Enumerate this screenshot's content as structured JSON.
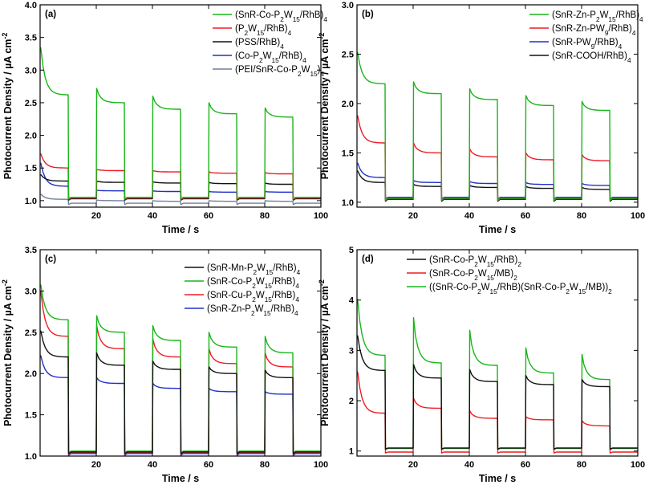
{
  "figure_colors": {
    "green": "#19b519",
    "red": "#ee1c24",
    "black": "#111111",
    "blue": "#2130c8",
    "slate": "#6f7f9e"
  },
  "chart_data": [
    {
      "panel": "(a)",
      "type": "line",
      "xlabel": "Time / s",
      "ylabel": "Photocurrent Density / µA cm⁻²",
      "xlim": [
        0,
        100
      ],
      "ylim": [
        0.9,
        4.0
      ],
      "xticks": [
        20,
        40,
        60,
        80,
        100
      ],
      "yticks": [
        1.0,
        1.5,
        2.0,
        2.5,
        3.0,
        3.5,
        4.0
      ],
      "legend_position": "top-right",
      "light_on_intervals": [
        [
          0,
          10
        ],
        [
          20,
          30
        ],
        [
          40,
          50
        ],
        [
          60,
          70
        ],
        [
          80,
          90
        ]
      ],
      "series": [
        {
          "name": "(SnR-Co-P2W15/RhB)4",
          "label": "(SnR-Co-P₂W₁₅/RhB)₄",
          "color": "green",
          "dark": 1.05,
          "peak": [
            3.35,
            2.72,
            2.6,
            2.5,
            2.42
          ],
          "plateau": [
            2.62,
            2.5,
            2.4,
            2.33,
            2.28
          ]
        },
        {
          "name": "(P2W15/RhB)4",
          "label": "(P₂W₁₅/RhB)₄",
          "color": "red",
          "dark": 1.04,
          "peak": [
            1.72,
            1.48,
            1.46,
            1.44,
            1.43
          ],
          "plateau": [
            1.5,
            1.46,
            1.44,
            1.42,
            1.41
          ]
        },
        {
          "name": "(PSS/RhB)4",
          "label": "(PSS/RhB)₄",
          "color": "black",
          "dark": 1.03,
          "peak": [
            1.4,
            1.3,
            1.29,
            1.28,
            1.27
          ],
          "plateau": [
            1.3,
            1.28,
            1.27,
            1.26,
            1.25
          ]
        },
        {
          "name": "(Co-P2W15/RhB)4",
          "label": "(Co-P₂W₁₅/RhB)₄",
          "color": "blue",
          "dark": 1.03,
          "peak": [
            1.58,
            1.16,
            1.15,
            1.14,
            1.14
          ],
          "plateau": [
            1.22,
            1.15,
            1.14,
            1.13,
            1.13
          ]
        },
        {
          "name": "(PEI/SnR-Co-P2W15)4",
          "label": "(PEI/SnR-Co-P₂W₁₅)₄",
          "color": "slate",
          "dark": 0.96,
          "peak": [
            1.1,
            1.01,
            1.0,
            1.0,
            1.0
          ],
          "plateau": [
            1.02,
            1.0,
            0.99,
            0.99,
            0.99
          ]
        }
      ]
    },
    {
      "panel": "(b)",
      "type": "line",
      "xlabel": "Time / s",
      "ylabel": "Photocurrent Density / µA cm⁻²",
      "xlim": [
        0,
        100
      ],
      "ylim": [
        0.95,
        3.0
      ],
      "xticks": [
        20,
        40,
        60,
        80,
        100
      ],
      "yticks": [
        1.0,
        1.5,
        2.0,
        2.5,
        3.0
      ],
      "legend_position": "top-right",
      "light_on_intervals": [
        [
          0,
          10
        ],
        [
          20,
          30
        ],
        [
          40,
          50
        ],
        [
          60,
          70
        ],
        [
          80,
          90
        ]
      ],
      "series": [
        {
          "name": "(SnR-Zn-P2W15/RhB)4",
          "label": "(SnR-Zn-P₂W₁₅/RhB)₄",
          "color": "green",
          "dark": 1.04,
          "peak": [
            2.52,
            2.22,
            2.15,
            2.08,
            2.02
          ],
          "plateau": [
            2.2,
            2.1,
            2.04,
            1.98,
            1.93
          ]
        },
        {
          "name": "(SnR-Zn-PW9/RhB)4",
          "label": "(SnR-Zn-PW₉/RhB)₄",
          "color": "red",
          "dark": 1.04,
          "peak": [
            1.88,
            1.6,
            1.54,
            1.5,
            1.48
          ],
          "plateau": [
            1.6,
            1.5,
            1.46,
            1.43,
            1.42
          ]
        },
        {
          "name": "(SnR-PW9/RhB)4",
          "label": "(SnR-PW₉/RhB)₄",
          "color": "blue",
          "dark": 1.05,
          "peak": [
            1.4,
            1.22,
            1.21,
            1.2,
            1.19
          ],
          "plateau": [
            1.25,
            1.2,
            1.19,
            1.18,
            1.17
          ]
        },
        {
          "name": "(SnR-COOH/RhB)4",
          "label": "(SnR-COOH/RhB)₄",
          "color": "black",
          "dark": 1.03,
          "peak": [
            1.32,
            1.18,
            1.17,
            1.16,
            1.15
          ],
          "plateau": [
            1.2,
            1.16,
            1.15,
            1.14,
            1.13
          ]
        }
      ]
    },
    {
      "panel": "(c)",
      "type": "line",
      "xlabel": "Time / s",
      "ylabel": "Photocurrent Density / µA cm⁻²",
      "xlim": [
        0,
        100
      ],
      "ylim": [
        1.0,
        3.5
      ],
      "xticks": [
        20,
        40,
        60,
        80,
        100
      ],
      "yticks": [
        1.0,
        1.5,
        2.0,
        2.5,
        3.0,
        3.5
      ],
      "legend_position": "top-right",
      "light_on_intervals": [
        [
          0,
          10
        ],
        [
          20,
          30
        ],
        [
          40,
          50
        ],
        [
          60,
          70
        ],
        [
          80,
          90
        ]
      ],
      "series": [
        {
          "name": "(SnR-Mn-P2W15/RhB)4",
          "label": "(SnR-Mn-P₂W₁₅/RhB)₄",
          "color": "black",
          "dark": 1.05,
          "peak": [
            2.52,
            2.25,
            2.15,
            2.08,
            2.04
          ],
          "plateau": [
            2.2,
            2.1,
            2.05,
            2.0,
            1.95
          ]
        },
        {
          "name": "(SnR-Co-P2W15/RhB)4",
          "label": "(SnR-Co-P₂W₁₅/RhB)₄",
          "color": "green",
          "dark": 1.06,
          "peak": [
            3.08,
            2.7,
            2.58,
            2.5,
            2.45
          ],
          "plateau": [
            2.65,
            2.5,
            2.4,
            2.32,
            2.25
          ]
        },
        {
          "name": "(SnR-Cu-P2W15/RhB)4",
          "label": "(SnR-Cu-P₂W₁₅/RhB)₄",
          "color": "red",
          "dark": 1.04,
          "peak": [
            3.0,
            2.58,
            2.42,
            2.3,
            2.25
          ],
          "plateau": [
            2.45,
            2.3,
            2.2,
            2.12,
            2.08
          ]
        },
        {
          "name": "(SnR-Zn-P2W15/RhB)4",
          "label": "(SnR-Zn-P₂W₁₅/RhB)₄",
          "color": "blue",
          "dark": 1.03,
          "peak": [
            2.22,
            1.95,
            1.88,
            1.82,
            1.78
          ],
          "plateau": [
            1.95,
            1.88,
            1.82,
            1.78,
            1.75
          ]
        }
      ]
    },
    {
      "panel": "(d)",
      "type": "line",
      "xlabel": "Time / s",
      "ylabel": "Photocurrent Density / µA cm⁻²",
      "xlim": [
        0,
        100
      ],
      "ylim": [
        0.9,
        5.0
      ],
      "xticks": [
        20,
        40,
        60,
        80,
        100
      ],
      "yticks": [
        1,
        2,
        3,
        4,
        5
      ],
      "legend_position": "top-right",
      "light_on_intervals": [
        [
          0,
          10
        ],
        [
          20,
          30
        ],
        [
          40,
          50
        ],
        [
          60,
          70
        ],
        [
          80,
          90
        ]
      ],
      "series": [
        {
          "name": "(SnR-Co-P2W15/RhB)2",
          "label": "(SnR-Co-P₂W₁₅/RhB)₂",
          "color": "black",
          "dark": 1.06,
          "peak": [
            3.3,
            2.72,
            2.62,
            2.5,
            2.42
          ],
          "plateau": [
            2.6,
            2.45,
            2.38,
            2.32,
            2.28
          ]
        },
        {
          "name": "(SnR-Co-P2W15/MB)2",
          "label": "(SnR-Co-P₂W₁₅/MB)₂",
          "color": "red",
          "dark": 0.98,
          "peak": [
            2.58,
            2.05,
            1.8,
            1.68,
            1.6
          ],
          "plateau": [
            1.75,
            1.85,
            1.65,
            1.62,
            1.5
          ]
        },
        {
          "name": "((SnR-Co-P2W15/RhB)(SnR-Co-P2W15/MB))2",
          "label": "((SnR-Co-P₂W₁₅/RhB)(SnR-Co-P₂W₁₅/MB))₂",
          "color": "green",
          "dark": 1.05,
          "peak": [
            4.02,
            3.65,
            3.4,
            3.05,
            2.92
          ],
          "plateau": [
            2.9,
            2.75,
            2.7,
            2.55,
            2.42
          ]
        }
      ]
    }
  ]
}
